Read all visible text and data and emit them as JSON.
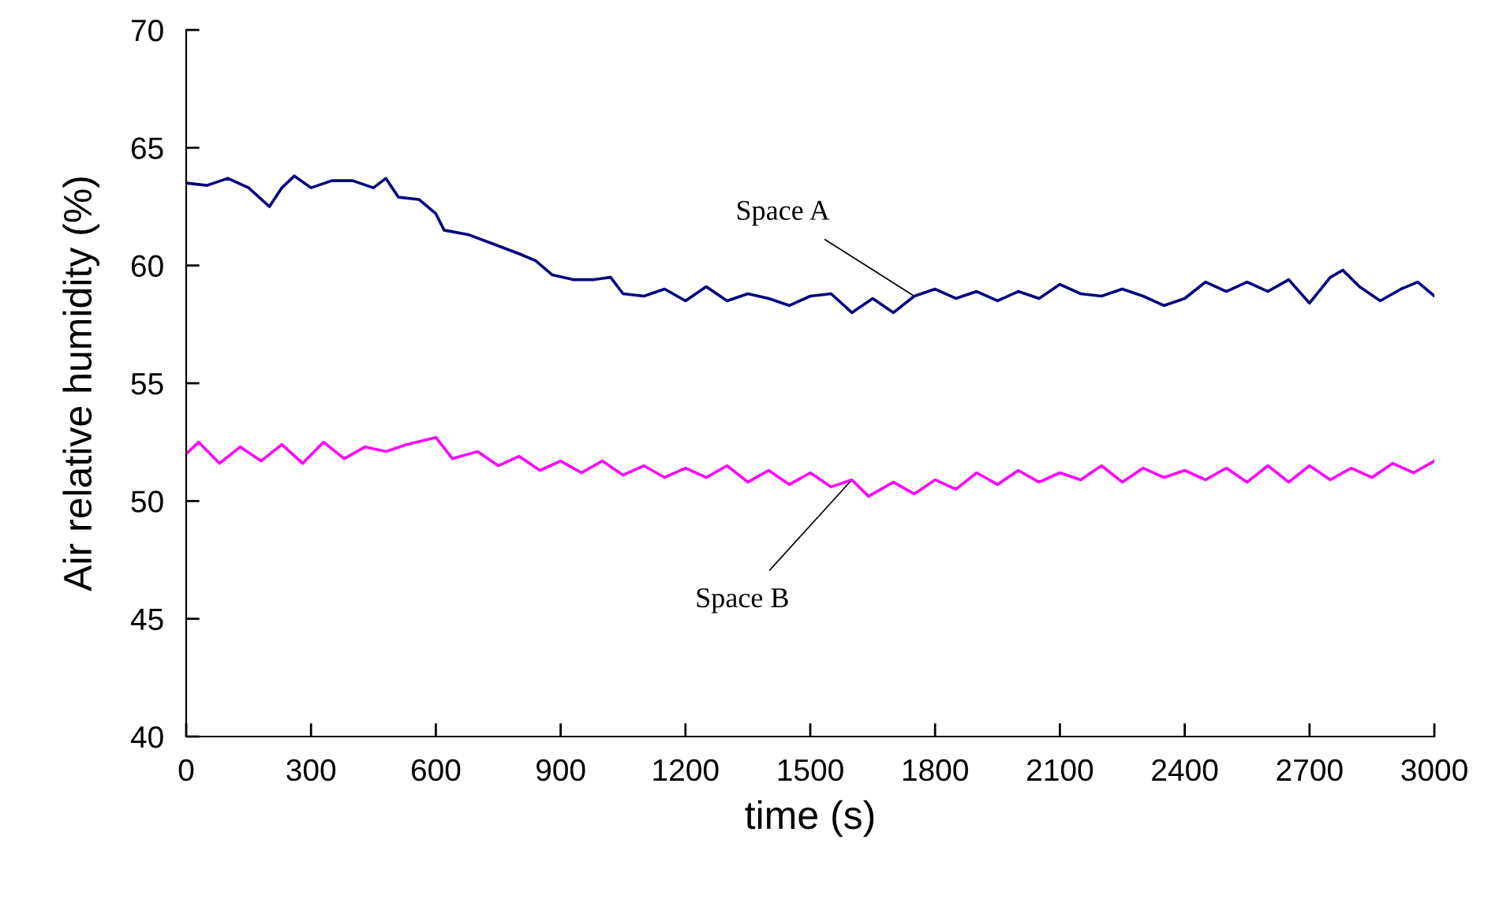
{
  "chart_data": {
    "type": "line",
    "xlabel": "time (s)",
    "ylabel": "Air relative humidity (%)",
    "xlim": [
      0,
      3000
    ],
    "xticks": [
      0,
      300,
      600,
      900,
      1200,
      1500,
      1800,
      2100,
      2400,
      2700,
      3000
    ],
    "ylim": [
      40,
      70
    ],
    "yticks": [
      40,
      45,
      50,
      55,
      60,
      65,
      70
    ],
    "grid": false,
    "legend": false,
    "marker": "none",
    "line_style": "solid",
    "series": [
      {
        "name": "Space A",
        "color": "#000080",
        "x": [
          0,
          50,
          100,
          150,
          200,
          230,
          260,
          300,
          350,
          400,
          450,
          480,
          510,
          560,
          600,
          620,
          680,
          740,
          800,
          840,
          880,
          930,
          980,
          1020,
          1050,
          1100,
          1150,
          1200,
          1250,
          1300,
          1350,
          1400,
          1450,
          1500,
          1550,
          1600,
          1650,
          1700,
          1750,
          1800,
          1850,
          1900,
          1950,
          2000,
          2050,
          2100,
          2150,
          2200,
          2250,
          2300,
          2350,
          2400,
          2450,
          2500,
          2550,
          2600,
          2650,
          2700,
          2750,
          2780,
          2820,
          2870,
          2920,
          2960,
          3000
        ],
        "values": [
          63.5,
          63.4,
          63.7,
          63.3,
          62.5,
          63.3,
          63.8,
          63.3,
          63.6,
          63.6,
          63.3,
          63.7,
          62.9,
          62.8,
          62.2,
          61.5,
          61.3,
          60.9,
          60.5,
          60.2,
          59.6,
          59.4,
          59.4,
          59.5,
          58.8,
          58.7,
          59.0,
          58.5,
          59.1,
          58.5,
          58.8,
          58.6,
          58.3,
          58.7,
          58.8,
          58.0,
          58.6,
          58.0,
          58.7,
          59.0,
          58.6,
          58.9,
          58.5,
          58.9,
          58.6,
          59.2,
          58.8,
          58.7,
          59.0,
          58.7,
          58.3,
          58.6,
          59.3,
          58.9,
          59.3,
          58.9,
          59.4,
          58.4,
          59.5,
          59.8,
          59.1,
          58.5,
          59.0,
          59.3,
          58.7
        ]
      },
      {
        "name": "Space B",
        "color": "#ff00ff",
        "x": [
          0,
          30,
          80,
          130,
          180,
          230,
          280,
          330,
          380,
          430,
          480,
          530,
          600,
          640,
          700,
          750,
          800,
          850,
          900,
          950,
          1000,
          1050,
          1100,
          1150,
          1200,
          1250,
          1300,
          1350,
          1400,
          1450,
          1500,
          1550,
          1600,
          1640,
          1700,
          1750,
          1800,
          1850,
          1900,
          1950,
          2000,
          2050,
          2100,
          2150,
          2200,
          2250,
          2300,
          2350,
          2400,
          2450,
          2500,
          2550,
          2600,
          2650,
          2700,
          2750,
          2800,
          2850,
          2900,
          2950,
          3000
        ],
        "values": [
          52.0,
          52.5,
          51.6,
          52.3,
          51.7,
          52.4,
          51.6,
          52.5,
          51.8,
          52.3,
          52.1,
          52.4,
          52.7,
          51.8,
          52.1,
          51.5,
          51.9,
          51.3,
          51.7,
          51.2,
          51.7,
          51.1,
          51.5,
          51.0,
          51.4,
          51.0,
          51.5,
          50.8,
          51.3,
          50.7,
          51.2,
          50.6,
          50.9,
          50.2,
          50.8,
          50.3,
          50.9,
          50.5,
          51.2,
          50.7,
          51.3,
          50.8,
          51.2,
          50.9,
          51.5,
          50.8,
          51.4,
          51.0,
          51.3,
          50.9,
          51.4,
          50.8,
          51.5,
          50.8,
          51.5,
          50.9,
          51.4,
          51.0,
          51.6,
          51.2,
          51.7
        ]
      }
    ]
  }
}
